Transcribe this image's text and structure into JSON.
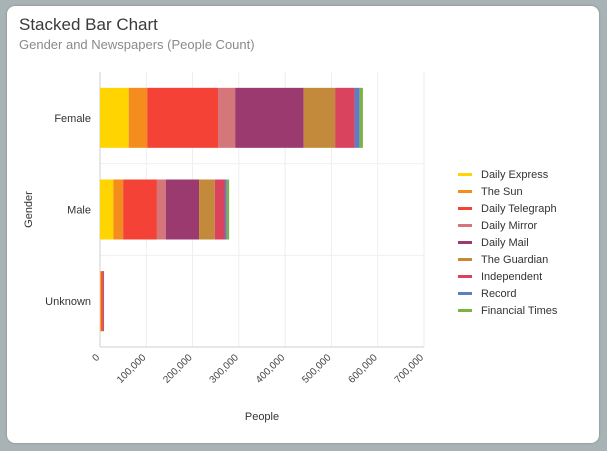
{
  "title": "Stacked Bar Chart",
  "subtitle": "Gender and Newspapers (People Count)",
  "chart_data": {
    "type": "bar",
    "orientation": "horizontal",
    "stacked": true,
    "xlabel": "People",
    "ylabel": "Gender",
    "xlim": [
      0,
      700000
    ],
    "xticks": [
      "0",
      "100,000",
      "200,000",
      "300,000",
      "400,000",
      "500,000",
      "600,000",
      "700,000"
    ],
    "categories": [
      "Female",
      "Male",
      "Unknown"
    ],
    "legend_position": "right",
    "grid": true,
    "series": [
      {
        "name": "Daily Express",
        "color": "#ffd400",
        "values": [
          62000,
          29000,
          1000
        ]
      },
      {
        "name": "The Sun",
        "color": "#f58c1e",
        "values": [
          40000,
          21000,
          1500
        ]
      },
      {
        "name": "Daily Telegraph",
        "color": "#f44336",
        "values": [
          153000,
          73000,
          2500
        ]
      },
      {
        "name": "Daily Mirror",
        "color": "#d4767a",
        "values": [
          37000,
          19000,
          500
        ]
      },
      {
        "name": "Daily Mail",
        "color": "#9b3a6e",
        "values": [
          148000,
          72000,
          1000
        ]
      },
      {
        "name": "The Guardian",
        "color": "#c28a3a",
        "values": [
          68000,
          34000,
          500
        ]
      },
      {
        "name": "Independent",
        "color": "#d9435e",
        "values": [
          42000,
          22000,
          500
        ]
      },
      {
        "name": "Record",
        "color": "#5f7ec0",
        "values": [
          11000,
          4000,
          0
        ]
      },
      {
        "name": "Financial Times",
        "color": "#7cb342",
        "values": [
          7000,
          5000,
          0
        ]
      }
    ]
  }
}
